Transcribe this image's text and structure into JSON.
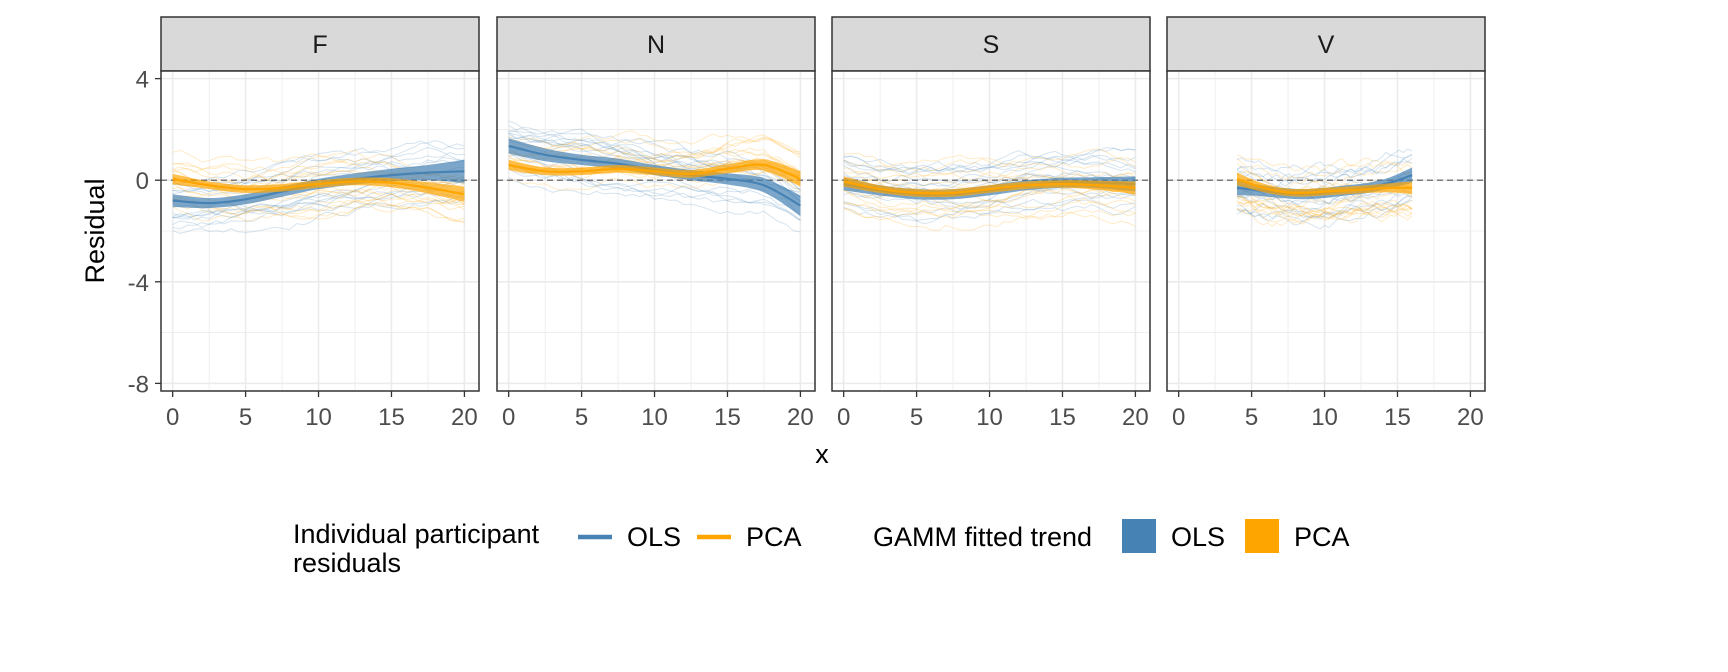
{
  "chart_data": {
    "type": "line",
    "facet_var": "panel",
    "facets": [
      "F",
      "N",
      "S",
      "V"
    ],
    "xlabel": "x",
    "ylabel": "Residual",
    "xlim": [
      -0.8,
      21
    ],
    "ylim": [
      -8.3,
      4.3
    ],
    "x_ticks": [
      0,
      5,
      10,
      15,
      20
    ],
    "y_ticks": [
      4,
      0,
      -4,
      -8
    ],
    "y_tick_labels": [
      "4",
      "0",
      "-4",
      "-8"
    ],
    "reference_line_y": 0,
    "grid": true,
    "legend_position": "bottom",
    "panels": [
      {
        "facet": "F",
        "x_range": [
          0,
          20
        ],
        "trend_series": [
          {
            "name": "OLS",
            "x": [
              0,
              2.5,
              5,
              7.5,
              10,
              12.5,
              15,
              17.5,
              20
            ],
            "y": [
              -0.8,
              -0.9,
              -0.75,
              -0.45,
              -0.15,
              0.05,
              0.2,
              0.3,
              0.35
            ],
            "se": [
              0.25,
              0.2,
              0.2,
              0.2,
              0.2,
              0.22,
              0.25,
              0.3,
              0.45
            ]
          },
          {
            "name": "PCA",
            "x": [
              0,
              2.5,
              5,
              7.5,
              10,
              12.5,
              15,
              17.5,
              20
            ],
            "y": [
              0.05,
              -0.2,
              -0.35,
              -0.3,
              -0.15,
              -0.05,
              -0.1,
              -0.3,
              -0.55
            ],
            "se": [
              0.2,
              0.15,
              0.15,
              0.15,
              0.15,
              0.15,
              0.18,
              0.22,
              0.3
            ]
          }
        ]
      },
      {
        "facet": "N",
        "x_range": [
          0,
          20
        ],
        "trend_series": [
          {
            "name": "OLS",
            "x": [
              0,
              2.5,
              5,
              7.5,
              10,
              12.5,
              15,
              17.5,
              20
            ],
            "y": [
              1.35,
              1.0,
              0.8,
              0.65,
              0.4,
              0.2,
              0.05,
              -0.2,
              -1.0
            ],
            "se": [
              0.3,
              0.25,
              0.2,
              0.2,
              0.2,
              0.2,
              0.22,
              0.28,
              0.4
            ]
          },
          {
            "name": "PCA",
            "x": [
              0,
              2.5,
              5,
              7.5,
              10,
              12.5,
              15,
              17.5,
              20
            ],
            "y": [
              0.6,
              0.35,
              0.35,
              0.45,
              0.35,
              0.25,
              0.45,
              0.6,
              0.05
            ],
            "se": [
              0.2,
              0.15,
              0.15,
              0.15,
              0.15,
              0.15,
              0.18,
              0.22,
              0.3
            ]
          }
        ]
      },
      {
        "facet": "S",
        "x_range": [
          0,
          20
        ],
        "trend_series": [
          {
            "name": "OLS",
            "x": [
              0,
              2.5,
              5,
              7.5,
              10,
              12.5,
              15,
              17.5,
              20
            ],
            "y": [
              -0.15,
              -0.4,
              -0.55,
              -0.55,
              -0.4,
              -0.2,
              -0.1,
              -0.1,
              -0.15
            ],
            "se": [
              0.25,
              0.2,
              0.2,
              0.2,
              0.2,
              0.2,
              0.2,
              0.22,
              0.3
            ]
          },
          {
            "name": "PCA",
            "x": [
              0,
              2.5,
              5,
              7.5,
              10,
              12.5,
              15,
              17.5,
              20
            ],
            "y": [
              -0.05,
              -0.35,
              -0.5,
              -0.5,
              -0.35,
              -0.2,
              -0.15,
              -0.2,
              -0.3
            ],
            "se": [
              0.2,
              0.15,
              0.15,
              0.15,
              0.15,
              0.15,
              0.15,
              0.18,
              0.25
            ]
          }
        ]
      },
      {
        "facet": "V",
        "x_range": [
          4,
          16
        ],
        "trend_series": [
          {
            "name": "OLS",
            "x": [
              4,
              5.5,
              7,
              8.5,
              10,
              11.5,
              13,
              14.5,
              16
            ],
            "y": [
              -0.3,
              -0.4,
              -0.5,
              -0.55,
              -0.5,
              -0.4,
              -0.3,
              -0.1,
              0.2
            ],
            "se": [
              0.3,
              0.22,
              0.2,
              0.2,
              0.2,
              0.2,
              0.2,
              0.22,
              0.3
            ]
          },
          {
            "name": "PCA",
            "x": [
              4,
              5.5,
              7,
              8.5,
              10,
              11.5,
              13,
              14.5,
              16
            ],
            "y": [
              0.05,
              -0.25,
              -0.45,
              -0.5,
              -0.45,
              -0.4,
              -0.35,
              -0.3,
              -0.3
            ],
            "se": [
              0.25,
              0.18,
              0.15,
              0.15,
              0.15,
              0.15,
              0.15,
              0.18,
              0.25
            ]
          }
        ]
      }
    ],
    "legend": {
      "residuals_title": "Individual participant\nresiduals",
      "residuals_items": [
        {
          "name": "OLS",
          "color": "#4682b4"
        },
        {
          "name": "PCA",
          "color": "#ffa500"
        }
      ],
      "trend_title": "GAMM fitted trend",
      "trend_items": [
        {
          "name": "OLS",
          "color": "#4682b4"
        },
        {
          "name": "PCA",
          "color": "#ffa500"
        }
      ]
    },
    "colors": {
      "OLS": "#4682b4",
      "PCA": "#ffa500",
      "strip_fill": "#d9d9d9",
      "grid": "#ebebeb"
    }
  }
}
